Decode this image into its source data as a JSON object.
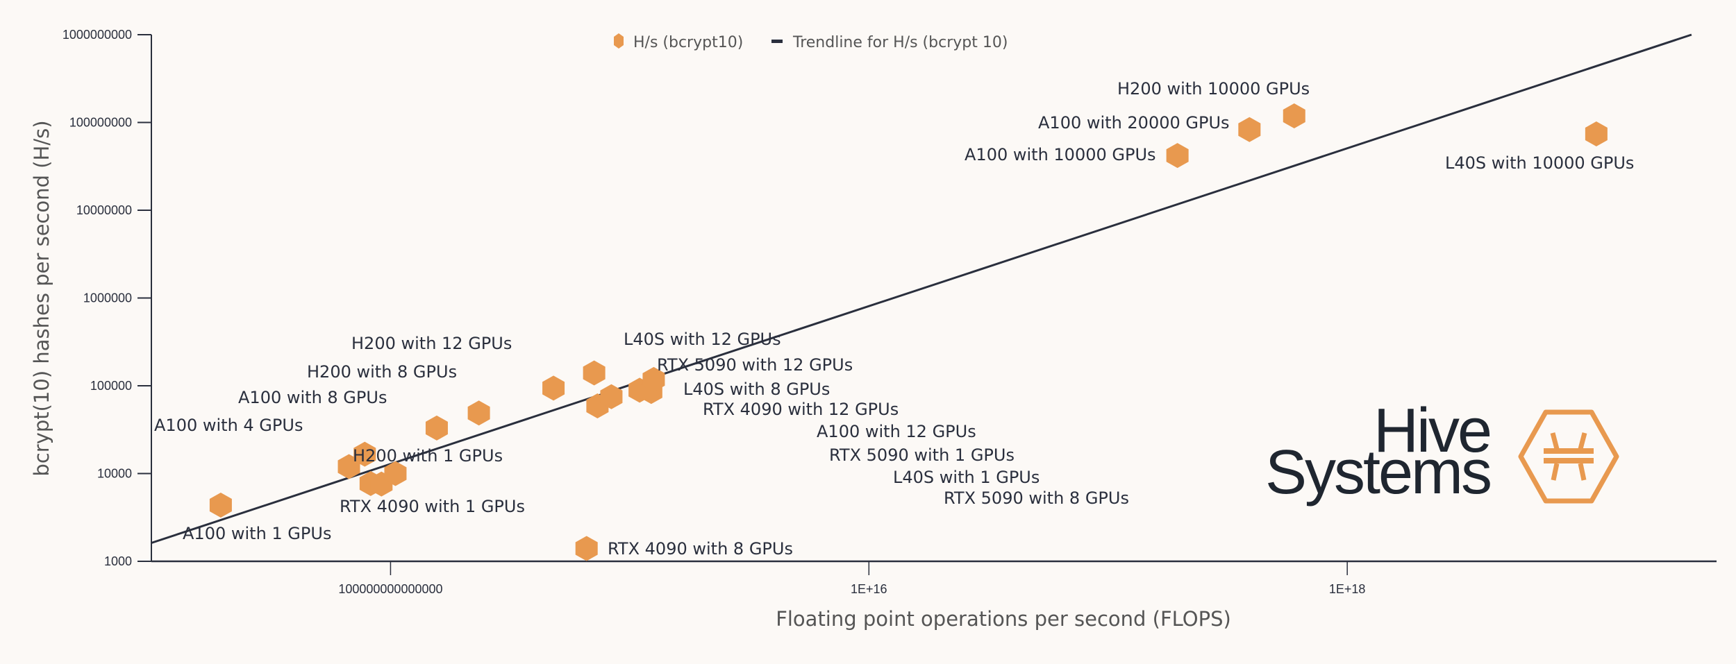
{
  "chart_data": {
    "type": "scatter",
    "xlabel": "Floating point operations per second (FLOPS)",
    "ylabel": "bcrypt(10) hashes per second (H/s)",
    "xscale": "log",
    "yscale": "log",
    "xlim": [
      10000000000000.0,
      3.5e+19
    ],
    "ylim": [
      1000,
      1000000000
    ],
    "x_ticks": [
      {
        "value": 100000000000000.0,
        "label": "100000000000000"
      },
      {
        "value": 1e+16,
        "label": "1E+16"
      },
      {
        "value": 1e+18,
        "label": "1E+18"
      }
    ],
    "y_ticks": [
      {
        "value": 1000,
        "label": "1000"
      },
      {
        "value": 10000,
        "label": "10000"
      },
      {
        "value": 100000,
        "label": "100000"
      },
      {
        "value": 1000000,
        "label": "1000000"
      },
      {
        "value": 10000000,
        "label": "10000000"
      },
      {
        "value": 100000000,
        "label": "100000000"
      },
      {
        "value": 1000000000,
        "label": "1000000000"
      }
    ],
    "grid": false,
    "legend_placement": "top-center",
    "series": [
      {
        "name": "H/s (bcrypt10)",
        "marker": "hexagon",
        "color": "#E8994F",
        "points": [
          {
            "label": "A100 with 1 GPUs",
            "x": 19500000000000.0,
            "y": 4370
          },
          {
            "label": "A100 with 4 GPUs",
            "x": 78000000000000.0,
            "y": 16600
          },
          {
            "label": "H200 with 1 GPUs",
            "x": 67000000000000.0,
            "y": 12000
          },
          {
            "label": "RTX 4090 with 1 GPUs",
            "x": 82600000000000.0,
            "y": 7700
          },
          {
            "label": "L40S with 1 GPUs",
            "x": 91600000000000.0,
            "y": 7600
          },
          {
            "label": "RTX 5090 with 1 GPUs",
            "x": 104800000000000.0,
            "y": 10000
          },
          {
            "label": "A100 with 8 GPUs",
            "x": 156000000000000.0,
            "y": 33000
          },
          {
            "label": "A100 with 12 GPUs",
            "x": 234000000000000.0,
            "y": 49000
          },
          {
            "label": "H200 with 8 GPUs",
            "x": 480000000000000.0,
            "y": 94000
          },
          {
            "label": "H200 with 12 GPUs",
            "x": 710000000000000.0,
            "y": 140000
          },
          {
            "label": "L40S with 8 GPUs",
            "x": 733000000000000.0,
            "y": 59000
          },
          {
            "label": "RTX 5090 with 8 GPUs",
            "x": 838000000000000.0,
            "y": 75000
          },
          {
            "label": "RTX 4090 with 12 GPUs",
            "x": 1100000000000000.0,
            "y": 89000
          },
          {
            "label": "L40S with 12 GPUs",
            "x": 1230000000000000.0,
            "y": 86000
          },
          {
            "label": "RTX 5090 with 12 GPUs",
            "x": 1260000000000000.0,
            "y": 118000
          },
          {
            "label": "RTX 4090 with 8 GPUs",
            "x": 660000000000000.0,
            "y": 1400
          },
          {
            "label": "A100 with 10000 GPUs",
            "x": 1.95e+17,
            "y": 42000000
          },
          {
            "label": "A100 with 20000 GPUs",
            "x": 3.9e+17,
            "y": 83000000
          },
          {
            "label": "H200 with 10000 GPUs",
            "x": 6e+17,
            "y": 119000000
          },
          {
            "label": "L40S with 10000 GPUs",
            "x": 1.1e+19,
            "y": 74000000
          }
        ]
      },
      {
        "name": "Trendline for H/s (bcrypt 10)",
        "type": "line",
        "color": "#2a2f3d",
        "x": [
          10000000000000.0,
          2.75e+19
        ],
        "y": [
          1620,
          1000000000
        ]
      }
    ]
  },
  "logo": {
    "line1": "Hive",
    "line2": "Systems",
    "color": "#E8994F"
  }
}
